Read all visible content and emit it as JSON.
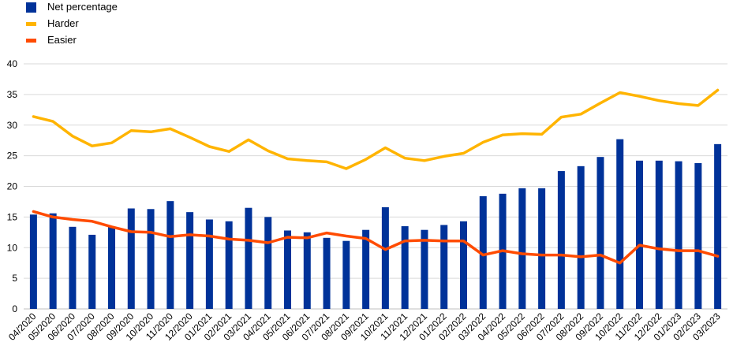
{
  "chart_data": {
    "type": "bar",
    "title": "",
    "xlabel": "",
    "ylabel": "",
    "ylim": [
      0,
      40
    ],
    "yticks": [
      0,
      5,
      10,
      15,
      20,
      25,
      30,
      35,
      40
    ],
    "grid": "horizontal",
    "legend_position": "top-left",
    "categories": [
      "04/2020",
      "05/2020",
      "06/2020",
      "07/2020",
      "08/2020",
      "09/2020",
      "10/2020",
      "11/2020",
      "12/2020",
      "01/2021",
      "02/2021",
      "03/2021",
      "04/2021",
      "05/2021",
      "06/2021",
      "07/2021",
      "08/2021",
      "09/2021",
      "10/2021",
      "11/2021",
      "12/2021",
      "01/2022",
      "02/2022",
      "03/2022",
      "04/2022",
      "05/2022",
      "06/2022",
      "07/2022",
      "08/2022",
      "09/2022",
      "10/2022",
      "11/2022",
      "12/2022",
      "01/2023",
      "02/2023",
      "03/2023"
    ],
    "series": [
      {
        "name": "Net percentage",
        "type": "bar",
        "color": "#003299",
        "values": [
          15.4,
          15.6,
          13.4,
          12.1,
          13.4,
          16.4,
          16.3,
          17.6,
          15.8,
          14.6,
          14.3,
          16.5,
          15.0,
          12.8,
          12.5,
          11.6,
          11.1,
          12.9,
          16.6,
          13.5,
          12.9,
          13.7,
          14.3,
          18.4,
          18.8,
          19.7,
          19.7,
          22.5,
          23.3,
          24.8,
          27.7,
          24.2,
          24.2,
          24.1,
          23.8,
          26.9
        ]
      },
      {
        "name": "Harder",
        "type": "line",
        "color": "#FFB400",
        "values": [
          31.4,
          30.6,
          28.2,
          26.6,
          27.1,
          29.1,
          28.9,
          29.4,
          28.0,
          26.5,
          25.7,
          27.6,
          25.8,
          24.5,
          24.2,
          24.0,
          22.9,
          24.4,
          26.3,
          24.6,
          24.2,
          24.9,
          25.4,
          27.2,
          28.4,
          28.6,
          28.5,
          31.3,
          31.8,
          33.6,
          35.3,
          34.7,
          34.0,
          33.5,
          33.2,
          35.7
        ]
      },
      {
        "name": "Easier",
        "type": "line",
        "color": "#FF4B00",
        "values": [
          15.9,
          15.0,
          14.6,
          14.3,
          13.4,
          12.6,
          12.5,
          11.8,
          12.1,
          11.9,
          11.4,
          11.2,
          10.8,
          11.7,
          11.6,
          12.4,
          11.9,
          11.5,
          9.7,
          11.1,
          11.2,
          11.1,
          11.1,
          8.8,
          9.5,
          9.0,
          8.8,
          8.8,
          8.5,
          8.8,
          7.5,
          10.4,
          9.8,
          9.5,
          9.5,
          8.6
        ]
      }
    ]
  }
}
